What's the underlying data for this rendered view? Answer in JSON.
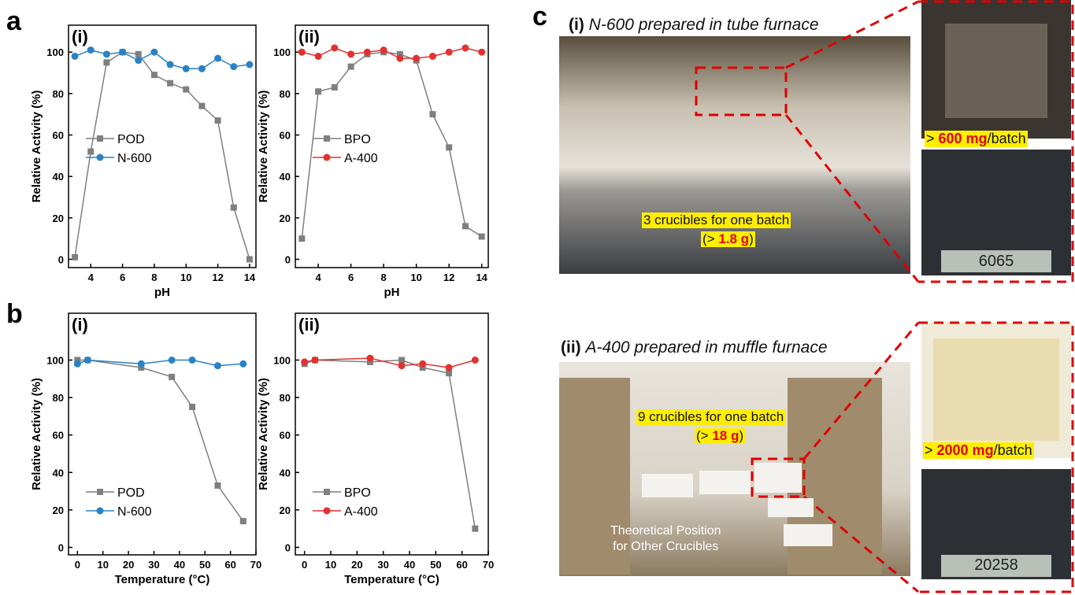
{
  "panel_labels": [
    "a",
    "b",
    "c"
  ],
  "chart_data": [
    {
      "type": "line",
      "title": "(i)",
      "xlabel": "pH",
      "ylabel": "Relative Activity (%)",
      "x": [
        3,
        4,
        5,
        6,
        7,
        8,
        9,
        10,
        11,
        12,
        13,
        14
      ],
      "xlim": [
        2.6,
        14.4
      ],
      "xticks": [
        4,
        6,
        8,
        10,
        12,
        14
      ],
      "ylim": [
        -4,
        113
      ],
      "yticks": [
        0,
        20,
        40,
        60,
        80,
        100
      ],
      "legend": "center left",
      "series": [
        {
          "name": "POD",
          "color": "#7f7f7f",
          "marker": "square",
          "values": [
            1,
            52,
            95,
            100,
            99,
            89,
            85,
            82,
            74,
            67,
            25,
            0
          ]
        },
        {
          "name": "N-600",
          "color": "#2a82c6",
          "marker": "circle",
          "values": [
            98,
            101,
            99,
            100,
            96,
            100,
            94,
            92,
            92,
            97,
            93,
            94
          ]
        }
      ]
    },
    {
      "type": "line",
      "title": "(ii)",
      "xlabel": "pH",
      "ylabel": "Relative Activity (%)",
      "x": [
        3,
        4,
        5,
        6,
        7,
        8,
        9,
        10,
        11,
        12,
        13,
        14
      ],
      "xlim": [
        2.6,
        14.4
      ],
      "xticks": [
        4,
        6,
        8,
        10,
        12,
        14
      ],
      "ylim": [
        -4,
        113
      ],
      "yticks": [
        0,
        20,
        40,
        60,
        80,
        100
      ],
      "legend": "center left",
      "series": [
        {
          "name": "BPO",
          "color": "#7f7f7f",
          "marker": "square",
          "values": [
            10,
            81,
            83,
            93,
            99,
            100,
            99,
            96,
            70,
            54,
            16,
            11
          ]
        },
        {
          "name": "A-400",
          "color": "#e2312f",
          "marker": "circle",
          "values": [
            100,
            98,
            102,
            99,
            100,
            101,
            97,
            97,
            98,
            100,
            102,
            100
          ]
        }
      ]
    },
    {
      "type": "line",
      "title": "(i)",
      "xlabel": "Temperature (°C)",
      "ylabel": "Relative Activity (%)",
      "x": [
        0,
        4,
        25,
        37,
        45,
        55,
        65
      ],
      "xlim": [
        -3.5,
        70
      ],
      "xticks": [
        0,
        10,
        20,
        30,
        40,
        50,
        60,
        70
      ],
      "ylim": [
        -4,
        125
      ],
      "yticks": [
        0,
        20,
        40,
        60,
        80,
        100
      ],
      "legend": "lower left",
      "series": [
        {
          "name": "POD",
          "color": "#7f7f7f",
          "marker": "square",
          "values": [
            100,
            100,
            96,
            91,
            75,
            33,
            14
          ]
        },
        {
          "name": "N-600",
          "color": "#2a82c6",
          "marker": "circle",
          "values": [
            98,
            100,
            98,
            100,
            100,
            97,
            98
          ]
        }
      ]
    },
    {
      "type": "line",
      "title": "(ii)",
      "xlabel": "Temperature (°C)",
      "ylabel": "Relative Activity (%)",
      "x": [
        0,
        4,
        25,
        37,
        45,
        55,
        65
      ],
      "xlim": [
        -3.5,
        70
      ],
      "xticks": [
        0,
        10,
        20,
        30,
        40,
        50,
        60,
        70
      ],
      "ylim": [
        -4,
        125
      ],
      "yticks": [
        0,
        20,
        40,
        60,
        80,
        100
      ],
      "legend": "lower left",
      "series": [
        {
          "name": "BPO",
          "color": "#7f7f7f",
          "marker": "square",
          "values": [
            98,
            100,
            99,
            100,
            96,
            93,
            10
          ]
        },
        {
          "name": "A-400",
          "color": "#e2312f",
          "marker": "circle",
          "values": [
            99,
            100,
            101,
            97,
            98,
            96,
            100
          ]
        }
      ]
    }
  ],
  "photos": {
    "top": {
      "label": "(i)",
      "caption": "N-600 prepared in tube furnace",
      "batch": "3 crucibles for one batch",
      "mass": [
        "(> ",
        "1.8 g",
        ")"
      ],
      "per_batch": [
        "> ",
        "600 mg",
        "/batch"
      ],
      "reading": "6065"
    },
    "bottom": {
      "label": "(ii)",
      "caption": "A-400 prepared in muffle furnace",
      "batch": "9 crucibles for one batch",
      "mass": [
        "(> ",
        "18 g",
        ")"
      ],
      "note": [
        "Theoretical Position",
        "for Other Crucibles"
      ],
      "per_batch": [
        "> ",
        "2000 mg",
        "/batch"
      ],
      "reading": "20258"
    }
  }
}
